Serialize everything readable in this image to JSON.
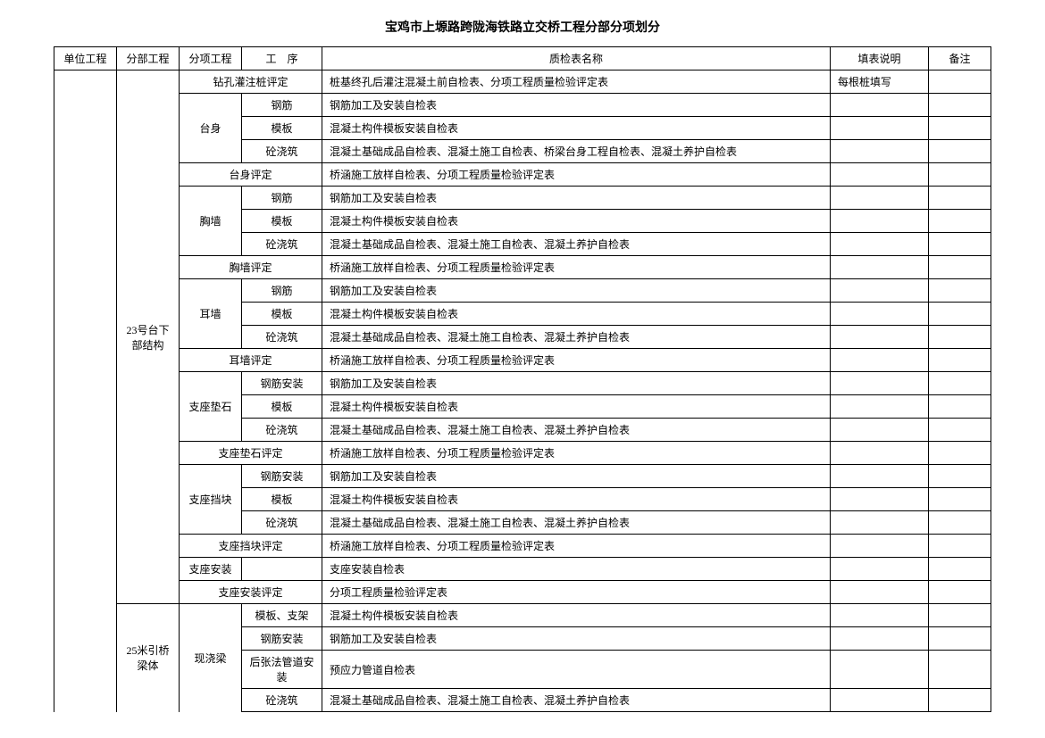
{
  "title": "宝鸡市上塬路跨陇海铁路立交桥工程分部分项划分",
  "headers": {
    "unit": "单位工程",
    "part": "分部工程",
    "sub": "分项工程",
    "proc": "工　序",
    "name": "质检表名称",
    "desc": "填表说明",
    "remark": "备注"
  },
  "part1": "23号台下部结构",
  "part2": "25米引桥梁体",
  "groups": {
    "zkgz": "钻孔灌注桩评定",
    "ts": "台身",
    "tspd": "台身评定",
    "xq": "胸墙",
    "xqpd": "胸墙评定",
    "eq": "耳墙",
    "eqpd": "耳墙评定",
    "zzds": "支座垫石",
    "zzdspd": "支座垫石评定",
    "zzdk": "支座挡块",
    "zzdkpd": "支座挡块评定",
    "zzaz": "支座安装",
    "zzazpd": "支座安装评定",
    "xjl": "现浇梁"
  },
  "procs": {
    "gj": "钢筋",
    "mb": "模板",
    "tjz": "砼浇筑",
    "gjaz": "钢筋安装",
    "mbzj": "模板、支架",
    "hzfgd": "后张法管道安装"
  },
  "names": {
    "r1": "桩基终孔后灌注混凝土前自检表、分项工程质量检验评定表",
    "r2": "钢筋加工及安装自检表",
    "r3": "混凝土构件模板安装自检表",
    "r4": "混凝土基础成品自检表、混凝土施工自检表、桥梁台身工程自检表、混凝土养护自检表",
    "r5": "桥涵施工放样自检表、分项工程质量检验评定表",
    "r6": "钢筋加工及安装自检表",
    "r7": "混凝土构件模板安装自检表",
    "r8": "混凝土基础成品自检表、混凝土施工自检表、混凝土养护自检表",
    "r9": "桥涵施工放样自检表、分项工程质量检验评定表",
    "r10": "钢筋加工及安装自检表",
    "r11": "混凝土构件模板安装自检表",
    "r12": "混凝土基础成品自检表、混凝土施工自检表、混凝土养护自检表",
    "r13": "桥涵施工放样自检表、分项工程质量检验评定表",
    "r14": "钢筋加工及安装自检表",
    "r15": "混凝土构件模板安装自检表",
    "r16": "混凝土基础成品自检表、混凝土施工自检表、混凝土养护自检表",
    "r17": "桥涵施工放样自检表、分项工程质量检验评定表",
    "r18": "钢筋加工及安装自检表",
    "r19": "混凝土构件模板安装自检表",
    "r20": "混凝土基础成品自检表、混凝土施工自检表、混凝土养护自检表",
    "r21": "桥涵施工放样自检表、分项工程质量检验评定表",
    "r22": "支座安装自检表",
    "r23": "分项工程质量检验评定表",
    "r24": "混凝土构件模板安装自检表",
    "r25": "钢筋加工及安装自检表",
    "r26": "预应力管道自检表",
    "r27": "混凝土基础成品自检表、混凝土施工自检表、混凝土养护自检表"
  },
  "descs": {
    "d1": "每根桩填写"
  }
}
